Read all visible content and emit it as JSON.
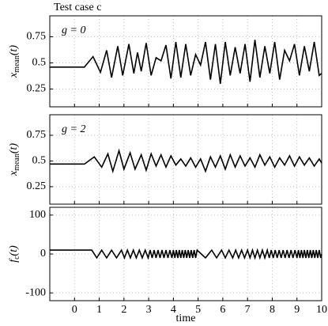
{
  "chart_data": [
    {
      "type": "line",
      "title": "Test case c",
      "annotation": "g = 0",
      "ylabel": [
        "x",
        "mean",
        "(t)"
      ],
      "xlim": [
        -1,
        10
      ],
      "xticks": [
        0,
        1,
        2,
        3,
        4,
        5,
        6,
        7,
        8,
        9,
        10
      ],
      "x_tick_labels": false,
      "ylim": [
        0.08,
        0.95
      ],
      "yticks": [
        0.25,
        0.5,
        0.75
      ],
      "grid": true,
      "color": "#000000",
      "x": [
        -1,
        0.4,
        0.75,
        1.05,
        1.3,
        1.5,
        1.75,
        1.95,
        2.2,
        2.4,
        2.55,
        2.7,
        2.9,
        3.1,
        3.3,
        3.5,
        3.7,
        3.9,
        4.1,
        4.3,
        4.5,
        4.7,
        4.9,
        5.1,
        5.3,
        5.5,
        5.7,
        5.9,
        6.1,
        6.3,
        6.5,
        6.7,
        6.9,
        7.1,
        7.3,
        7.5,
        7.7,
        7.9,
        8.1,
        8.3,
        8.5,
        8.7,
        8.9,
        9.1,
        9.3,
        9.5,
        9.7,
        9.9,
        10
      ],
      "values": [
        0.46,
        0.46,
        0.56,
        0.41,
        0.62,
        0.36,
        0.66,
        0.38,
        0.68,
        0.4,
        0.6,
        0.42,
        0.69,
        0.38,
        0.55,
        0.52,
        0.67,
        0.35,
        0.7,
        0.36,
        0.68,
        0.38,
        0.58,
        0.48,
        0.7,
        0.34,
        0.68,
        0.3,
        0.7,
        0.38,
        0.65,
        0.4,
        0.68,
        0.32,
        0.72,
        0.36,
        0.66,
        0.4,
        0.7,
        0.34,
        0.62,
        0.52,
        0.68,
        0.38,
        0.66,
        0.42,
        0.7,
        0.38,
        0.4
      ]
    },
    {
      "type": "line",
      "annotation": "g = 2",
      "ylabel": [
        "x",
        "mean",
        "(t)"
      ],
      "xlim": [
        -1,
        10
      ],
      "xticks": [
        0,
        1,
        2,
        3,
        4,
        5,
        6,
        7,
        8,
        9,
        10
      ],
      "x_tick_labels": false,
      "ylim": [
        0.08,
        0.95
      ],
      "yticks": [
        0.25,
        0.5,
        0.75
      ],
      "grid": true,
      "color": "#000000",
      "x": [
        -1,
        0.4,
        0.8,
        1.1,
        1.35,
        1.55,
        1.8,
        2.0,
        2.25,
        2.45,
        2.7,
        2.9,
        3.1,
        3.3,
        3.5,
        3.7,
        3.9,
        4.1,
        4.3,
        4.5,
        4.7,
        4.9,
        5.1,
        5.3,
        5.5,
        5.7,
        5.9,
        6.1,
        6.3,
        6.5,
        6.7,
        6.9,
        7.1,
        7.3,
        7.5,
        7.7,
        7.9,
        8.1,
        8.3,
        8.5,
        8.7,
        8.9,
        9.1,
        9.3,
        9.5,
        9.7,
        9.9,
        10
      ],
      "values": [
        0.47,
        0.47,
        0.54,
        0.44,
        0.57,
        0.4,
        0.6,
        0.42,
        0.58,
        0.42,
        0.56,
        0.41,
        0.57,
        0.45,
        0.56,
        0.44,
        0.55,
        0.46,
        0.52,
        0.45,
        0.53,
        0.44,
        0.52,
        0.4,
        0.54,
        0.44,
        0.55,
        0.42,
        0.56,
        0.44,
        0.55,
        0.45,
        0.53,
        0.44,
        0.56,
        0.46,
        0.54,
        0.44,
        0.53,
        0.46,
        0.55,
        0.45,
        0.54,
        0.46,
        0.53,
        0.45,
        0.52,
        0.48
      ]
    },
    {
      "type": "line",
      "ylabel": [
        "f",
        "c",
        "(t)"
      ],
      "xlabel": "time",
      "xlim": [
        -1,
        10
      ],
      "xticks": [
        0,
        1,
        2,
        3,
        4,
        5,
        6,
        7,
        8,
        9,
        10
      ],
      "x_tick_labels": true,
      "ylim": [
        -120,
        120
      ],
      "yticks": [
        -100,
        0,
        100
      ],
      "grid": true,
      "color": "#000000",
      "x": [
        -1,
        0.7,
        0.9,
        1.1,
        1.3,
        1.5,
        1.7,
        1.9,
        2.02,
        2.14,
        2.26,
        2.38,
        2.5,
        2.62,
        2.74,
        2.86,
        2.98,
        3.06,
        3.14,
        3.22,
        3.3,
        3.38,
        3.46,
        3.54,
        3.62,
        3.7,
        3.78,
        3.86,
        3.94,
        4.0,
        4.06,
        4.12,
        4.18,
        4.24,
        4.3,
        4.36,
        4.42,
        4.48,
        4.54,
        4.6,
        4.66,
        4.72,
        4.78,
        4.84,
        4.9,
        4.96,
        5.3,
        5.55,
        5.75,
        5.95,
        6.1,
        6.25,
        6.4,
        6.52,
        6.64,
        6.76,
        6.88,
        7.0,
        7.1,
        7.2,
        7.3,
        7.4,
        7.5,
        7.6,
        7.7,
        7.8,
        7.88,
        7.96,
        8.04,
        8.12,
        8.2,
        8.28,
        8.36,
        8.44,
        8.52,
        8.6,
        8.68,
        8.76,
        8.84,
        8.92,
        9.0,
        9.06,
        9.12,
        9.18,
        9.24,
        9.3,
        9.36,
        9.42,
        9.48,
        9.54,
        9.6,
        9.66,
        9.72,
        9.78,
        9.84,
        9.9,
        9.96,
        10
      ],
      "values": [
        10,
        10,
        -10,
        10,
        -10,
        10,
        -10,
        10,
        -10,
        10,
        -10,
        10,
        -10,
        10,
        -10,
        10,
        -10,
        10,
        -10,
        10,
        -10,
        10,
        -10,
        10,
        -10,
        10,
        -10,
        10,
        -10,
        10,
        -10,
        10,
        -10,
        10,
        -10,
        10,
        -10,
        10,
        -10,
        10,
        -10,
        10,
        -10,
        10,
        -10,
        10,
        -10,
        10,
        -10,
        10,
        -10,
        10,
        -10,
        10,
        -10,
        10,
        -10,
        10,
        -10,
        10,
        -10,
        10,
        -10,
        10,
        -10,
        10,
        -10,
        10,
        -10,
        10,
        -10,
        10,
        -10,
        10,
        -10,
        10,
        -10,
        10,
        -10,
        10,
        -10,
        10,
        -10,
        10,
        -10,
        10,
        -10,
        10,
        -10,
        10,
        -10,
        10,
        -10,
        10,
        -10,
        10,
        -10,
        0
      ]
    }
  ]
}
